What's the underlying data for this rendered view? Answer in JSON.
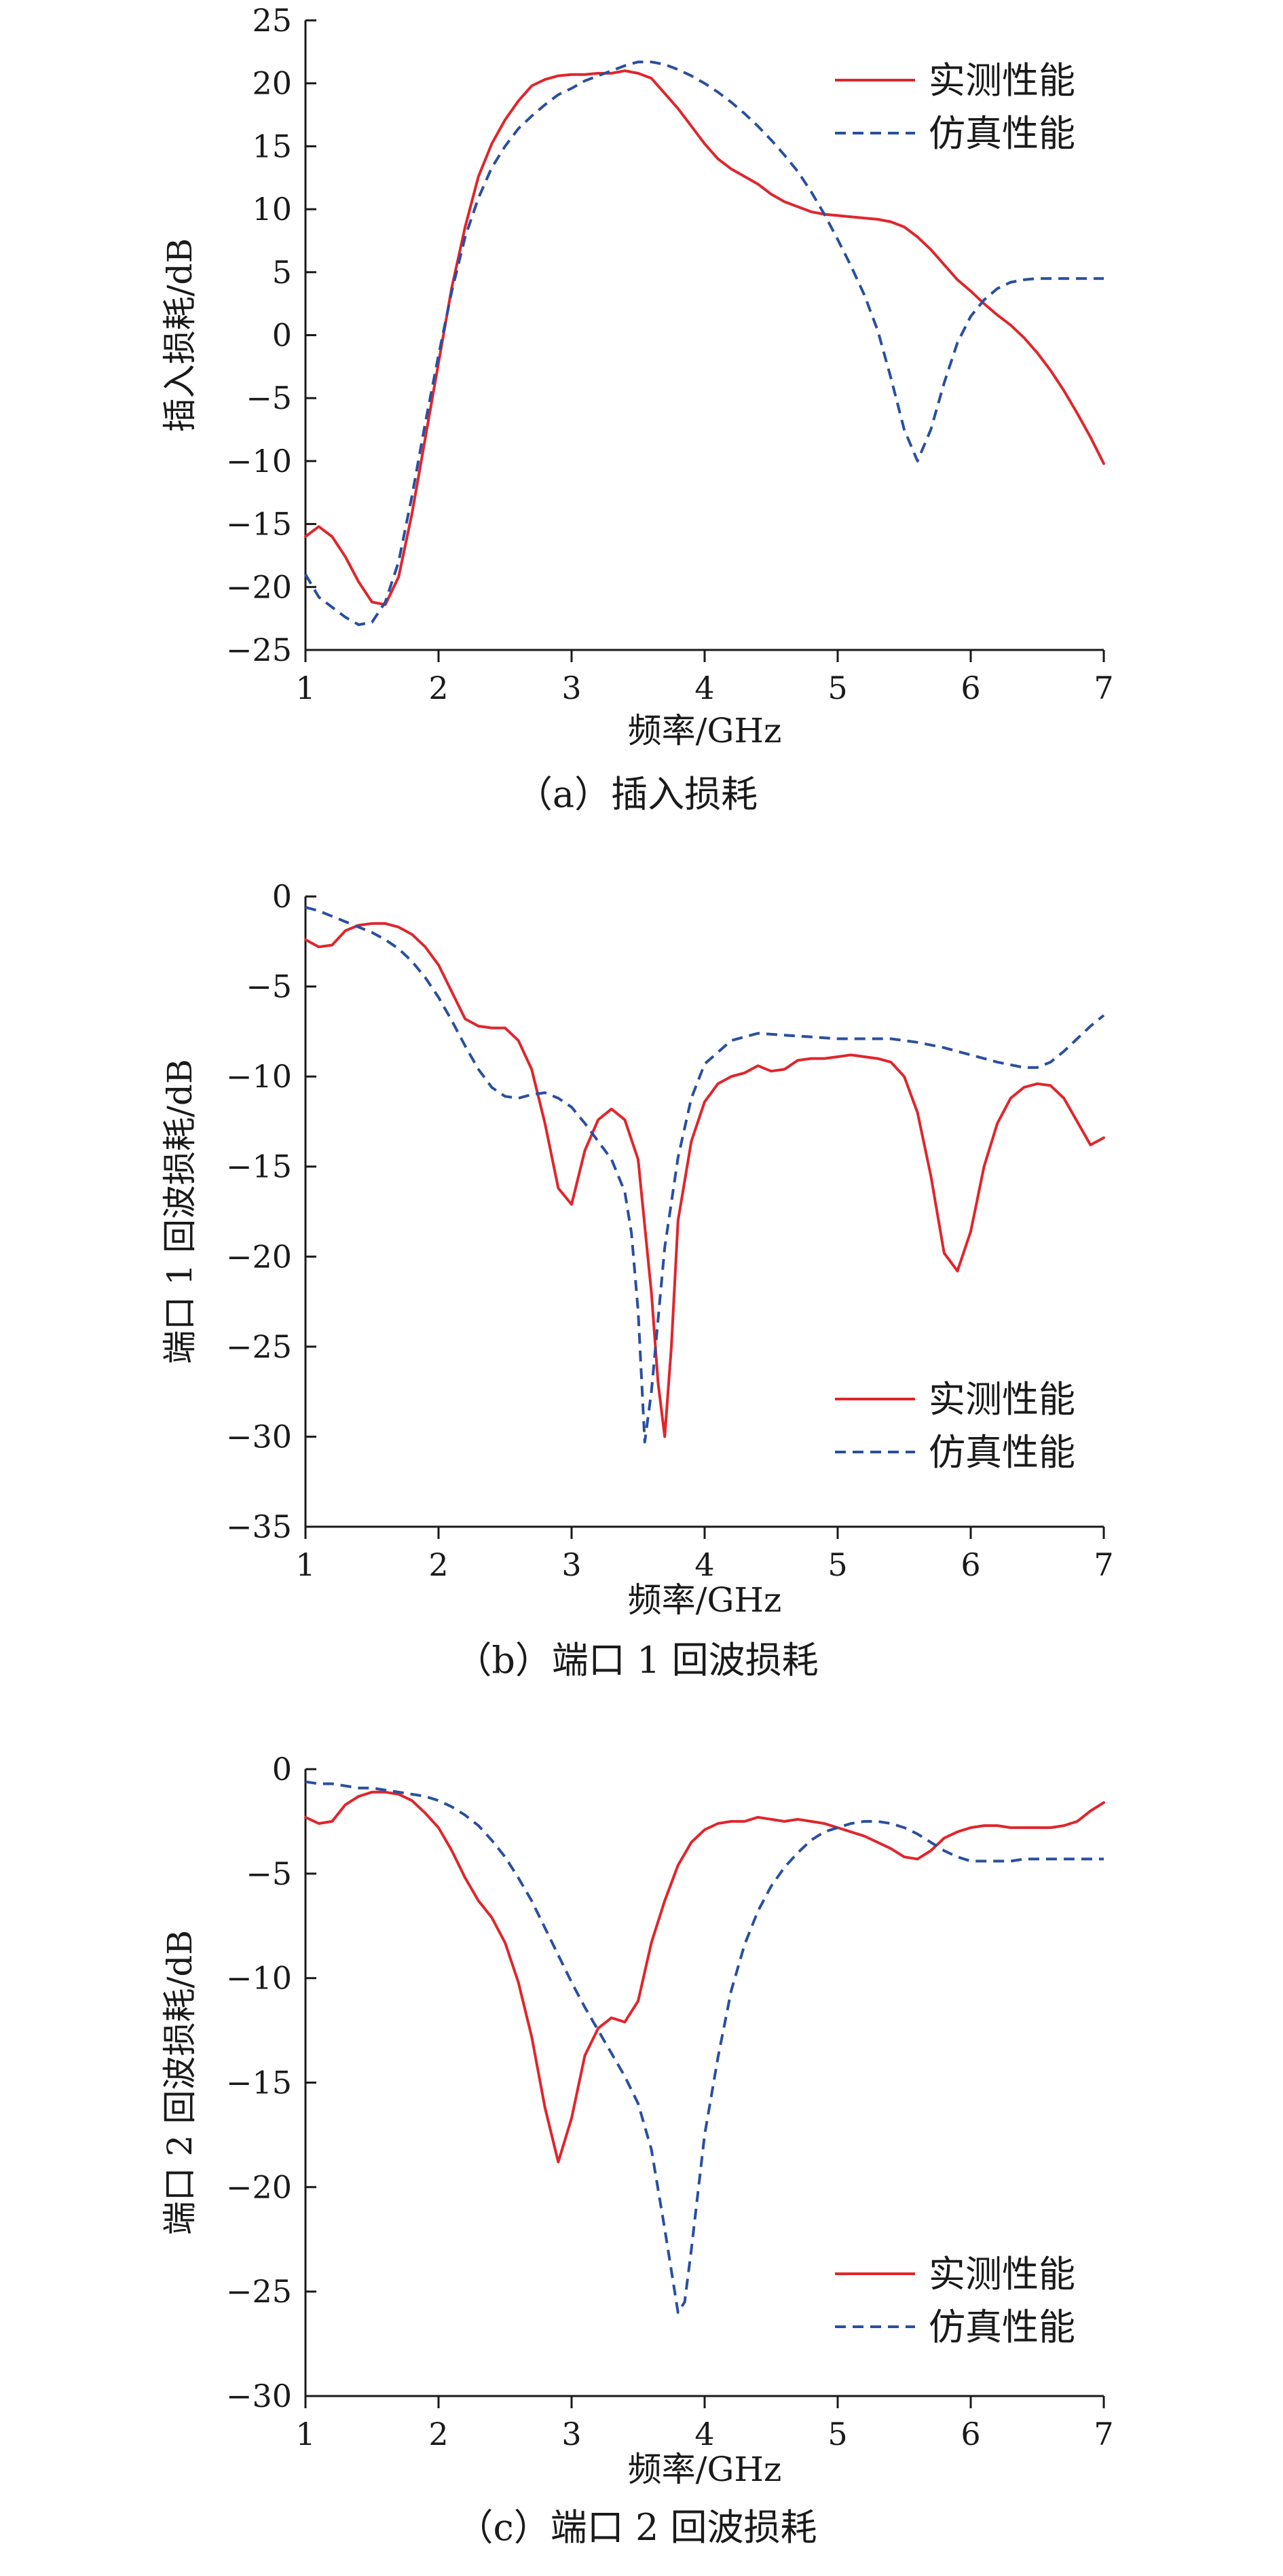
{
  "colors": {
    "measured": "#e0262c",
    "simulated": "#2a4f9e",
    "axis": "#1a1a1a"
  },
  "chart_data": [
    {
      "type": "line",
      "caption": "（a）插入损耗",
      "xlabel": "频率/GHz",
      "ylabel": "插入损耗/dB",
      "xlim": [
        1,
        7
      ],
      "ylim": [
        -25,
        25
      ],
      "xticks": [
        1,
        2,
        3,
        4,
        5,
        6,
        7
      ],
      "yticks": [
        25,
        20,
        15,
        10,
        5,
        0,
        -5,
        -10,
        -15,
        -20,
        -25
      ],
      "ytick_labels": [
        "25",
        "20",
        "15",
        "10",
        "5",
        "0",
        "−5",
        "−10",
        "−15",
        "−20",
        "−25"
      ],
      "legend_position": "top-right",
      "grid": false,
      "series": [
        {
          "name": "实测性能",
          "style": "solid",
          "color": "#e0262c",
          "x": [
            1,
            1.1,
            1.2,
            1.3,
            1.4,
            1.5,
            1.6,
            1.7,
            1.8,
            1.9,
            2,
            2.1,
            2.2,
            2.3,
            2.4,
            2.5,
            2.6,
            2.7,
            2.8,
            2.9,
            3,
            3.1,
            3.2,
            3.3,
            3.4,
            3.5,
            3.6,
            3.7,
            3.8,
            3.9,
            4,
            4.1,
            4.2,
            4.3,
            4.4,
            4.5,
            4.6,
            4.7,
            4.8,
            4.9,
            5,
            5.1,
            5.2,
            5.3,
            5.4,
            5.5,
            5.6,
            5.7,
            5.8,
            5.9,
            6,
            6.1,
            6.2,
            6.3,
            6.4,
            6.5,
            6.6,
            6.7,
            6.8,
            6.9,
            7
          ],
          "y": [
            -16,
            -15.2,
            -16,
            -17.6,
            -19.6,
            -21.2,
            -21.4,
            -19.2,
            -14.2,
            -8.2,
            -2.2,
            3.8,
            8.6,
            12.6,
            15.2,
            17.1,
            18.6,
            19.8,
            20.3,
            20.6,
            20.7,
            20.7,
            20.8,
            20.8,
            21,
            20.8,
            20.4,
            19.2,
            18,
            16.6,
            15.2,
            14,
            13.2,
            12.6,
            12,
            11.2,
            10.6,
            10.2,
            9.8,
            9.6,
            9.5,
            9.4,
            9.3,
            9.2,
            9,
            8.6,
            7.8,
            6.8,
            5.6,
            4.4,
            3.5,
            2.5,
            1.6,
            0.8,
            -0.2,
            -1.4,
            -2.8,
            -4.4,
            -6.2,
            -8.1,
            -10.2
          ]
        },
        {
          "name": "仿真性能",
          "style": "dashed",
          "color": "#2a4f9e",
          "x": [
            1,
            1.1,
            1.2,
            1.3,
            1.4,
            1.5,
            1.6,
            1.7,
            1.8,
            1.9,
            2,
            2.1,
            2.2,
            2.3,
            2.4,
            2.5,
            2.6,
            2.7,
            2.8,
            2.9,
            3,
            3.1,
            3.2,
            3.3,
            3.4,
            3.5,
            3.6,
            3.7,
            3.8,
            3.9,
            4,
            4.1,
            4.2,
            4.3,
            4.4,
            4.5,
            4.6,
            4.7,
            4.8,
            4.9,
            5,
            5.1,
            5.2,
            5.3,
            5.4,
            5.5,
            5.6,
            5.7,
            5.8,
            5.9,
            6,
            6.1,
            6.2,
            6.3,
            6.4,
            6.5,
            6.6,
            6.7,
            6.8,
            6.9,
            7
          ],
          "y": [
            -19,
            -20.8,
            -21.6,
            -22.4,
            -23,
            -22.8,
            -21.2,
            -18,
            -12.8,
            -7,
            -1.6,
            3.5,
            7.8,
            10.9,
            13.3,
            15,
            16.4,
            17.4,
            18.3,
            19.1,
            19.6,
            20.2,
            20.6,
            21,
            21.4,
            21.7,
            21.7,
            21.5,
            21.1,
            20.6,
            20,
            19.3,
            18.5,
            17.6,
            16.6,
            15.5,
            14.3,
            13,
            11.4,
            9.6,
            7.6,
            5.5,
            3.2,
            0.4,
            -3.4,
            -7.5,
            -10,
            -7.5,
            -3.8,
            -0.6,
            1.5,
            2.8,
            3.7,
            4.2,
            4.4,
            4.5,
            4.5,
            4.5,
            4.5,
            4.5,
            4.5
          ]
        }
      ]
    },
    {
      "type": "line",
      "caption": "（b）端口 1 回波损耗",
      "xlabel": "频率/GHz",
      "ylabel": "端口 1 回波损耗/dB",
      "xlim": [
        1,
        7
      ],
      "ylim": [
        -35,
        0
      ],
      "xticks": [
        1,
        2,
        3,
        4,
        5,
        6,
        7
      ],
      "yticks": [
        0,
        -5,
        -10,
        -15,
        -20,
        -25,
        -30,
        -35
      ],
      "ytick_labels": [
        "0",
        "−5",
        "−10",
        "−15",
        "−20",
        "−25",
        "−30",
        "−35"
      ],
      "legend_position": "bottom-right",
      "grid": false,
      "series": [
        {
          "name": "实测性能",
          "style": "solid",
          "color": "#e0262c",
          "x": [
            1,
            1.1,
            1.2,
            1.3,
            1.4,
            1.5,
            1.6,
            1.7,
            1.8,
            1.9,
            2,
            2.1,
            2.2,
            2.3,
            2.4,
            2.5,
            2.6,
            2.7,
            2.8,
            2.9,
            3,
            3.1,
            3.2,
            3.3,
            3.4,
            3.5,
            3.6,
            3.65,
            3.7,
            3.75,
            3.8,
            3.9,
            4,
            4.1,
            4.2,
            4.3,
            4.4,
            4.5,
            4.6,
            4.7,
            4.8,
            4.9,
            5,
            5.1,
            5.2,
            5.3,
            5.4,
            5.5,
            5.6,
            5.7,
            5.8,
            5.9,
            6,
            6.1,
            6.2,
            6.3,
            6.4,
            6.5,
            6.6,
            6.7,
            6.8,
            6.9,
            7
          ],
          "y": [
            -2.4,
            -2.8,
            -2.7,
            -1.9,
            -1.6,
            -1.5,
            -1.5,
            -1.7,
            -2.1,
            -2.8,
            -3.8,
            -5.3,
            -6.8,
            -7.2,
            -7.3,
            -7.3,
            -8,
            -9.6,
            -12.6,
            -16.2,
            -17.1,
            -14.1,
            -12.4,
            -11.8,
            -12.4,
            -14.6,
            -22,
            -27,
            -30,
            -25,
            -18,
            -13.6,
            -11.4,
            -10.4,
            -10,
            -9.8,
            -9.4,
            -9.7,
            -9.6,
            -9.1,
            -9,
            -9,
            -8.9,
            -8.8,
            -8.9,
            -9,
            -9.2,
            -10,
            -12,
            -15.5,
            -19.8,
            -20.8,
            -18.6,
            -15,
            -12.6,
            -11.2,
            -10.6,
            -10.4,
            -10.5,
            -11.2,
            -12.5,
            -13.8,
            -13.4
          ]
        },
        {
          "name": "仿真性能",
          "style": "dashed",
          "color": "#2a4f9e",
          "x": [
            1,
            1.1,
            1.2,
            1.3,
            1.4,
            1.5,
            1.6,
            1.7,
            1.8,
            1.9,
            2,
            2.1,
            2.2,
            2.3,
            2.4,
            2.5,
            2.6,
            2.7,
            2.8,
            2.9,
            3,
            3.1,
            3.2,
            3.3,
            3.4,
            3.45,
            3.5,
            3.55,
            3.6,
            3.7,
            3.8,
            3.9,
            4,
            4.2,
            4.4,
            4.6,
            4.8,
            5,
            5.2,
            5.4,
            5.6,
            5.8,
            6,
            6.2,
            6.4,
            6.5,
            6.6,
            6.7,
            6.8,
            6.9,
            7
          ],
          "y": [
            -0.6,
            -0.8,
            -1.1,
            -1.4,
            -1.7,
            -2,
            -2.4,
            -2.9,
            -3.6,
            -4.5,
            -5.6,
            -6.9,
            -8.3,
            -9.6,
            -10.6,
            -11.1,
            -11.2,
            -11,
            -10.9,
            -11.2,
            -11.7,
            -12.6,
            -13.6,
            -14.6,
            -16.4,
            -18.7,
            -23,
            -30.3,
            -27.5,
            -19.5,
            -14.5,
            -11.2,
            -9.3,
            -8,
            -7.6,
            -7.7,
            -7.8,
            -7.9,
            -7.9,
            -7.9,
            -8.1,
            -8.4,
            -8.8,
            -9.2,
            -9.5,
            -9.5,
            -9.2,
            -8.6,
            -7.9,
            -7.2,
            -6.6
          ]
        }
      ]
    },
    {
      "type": "line",
      "caption": "（c）端口 2 回波损耗",
      "xlabel": "频率/GHz",
      "ylabel": "端口 2 回波损耗/dB",
      "xlim": [
        1,
        7
      ],
      "ylim": [
        -30,
        0
      ],
      "xticks": [
        1,
        2,
        3,
        4,
        5,
        6,
        7
      ],
      "yticks": [
        0,
        -5,
        -10,
        -15,
        -20,
        -25,
        -30
      ],
      "ytick_labels": [
        "0",
        "−5",
        "−10",
        "−15",
        "−20",
        "−25",
        "−30"
      ],
      "legend_position": "bottom-right",
      "grid": false,
      "series": [
        {
          "name": "实测性能",
          "style": "solid",
          "color": "#e0262c",
          "x": [
            1,
            1.1,
            1.2,
            1.3,
            1.4,
            1.5,
            1.6,
            1.7,
            1.8,
            1.9,
            2,
            2.1,
            2.2,
            2.3,
            2.4,
            2.5,
            2.6,
            2.7,
            2.8,
            2.9,
            3,
            3.1,
            3.2,
            3.3,
            3.4,
            3.5,
            3.6,
            3.7,
            3.8,
            3.9,
            4,
            4.1,
            4.2,
            4.3,
            4.4,
            4.5,
            4.6,
            4.7,
            4.8,
            4.9,
            5,
            5.1,
            5.2,
            5.3,
            5.4,
            5.5,
            5.6,
            5.7,
            5.8,
            5.9,
            6,
            6.1,
            6.2,
            6.3,
            6.4,
            6.5,
            6.6,
            6.7,
            6.8,
            6.9,
            7
          ],
          "y": [
            -2.3,
            -2.6,
            -2.5,
            -1.7,
            -1.3,
            -1.1,
            -1.1,
            -1.2,
            -1.5,
            -2.1,
            -2.8,
            -3.9,
            -5.2,
            -6.3,
            -7.1,
            -8.3,
            -10.2,
            -12.8,
            -16.2,
            -18.8,
            -16.7,
            -13.7,
            -12.4,
            -11.9,
            -12.1,
            -11.1,
            -8.3,
            -6.3,
            -4.6,
            -3.5,
            -2.9,
            -2.6,
            -2.5,
            -2.5,
            -2.3,
            -2.4,
            -2.5,
            -2.4,
            -2.5,
            -2.6,
            -2.8,
            -3,
            -3.2,
            -3.5,
            -3.8,
            -4.2,
            -4.3,
            -3.9,
            -3.3,
            -3,
            -2.8,
            -2.7,
            -2.7,
            -2.8,
            -2.8,
            -2.8,
            -2.8,
            -2.7,
            -2.5,
            -2,
            -1.6
          ]
        },
        {
          "name": "仿真性能",
          "style": "dashed",
          "color": "#2a4f9e",
          "x": [
            1,
            1.1,
            1.2,
            1.3,
            1.4,
            1.5,
            1.6,
            1.7,
            1.8,
            1.9,
            2,
            2.1,
            2.2,
            2.3,
            2.4,
            2.5,
            2.6,
            2.7,
            2.8,
            2.9,
            3,
            3.1,
            3.2,
            3.3,
            3.4,
            3.5,
            3.6,
            3.7,
            3.8,
            3.85,
            3.9,
            4,
            4.1,
            4.2,
            4.3,
            4.4,
            4.5,
            4.6,
            4.7,
            4.8,
            4.9,
            5,
            5.1,
            5.2,
            5.3,
            5.4,
            5.5,
            5.6,
            5.7,
            5.8,
            5.9,
            6,
            6.1,
            6.2,
            6.3,
            6.4,
            6.5,
            6.6,
            6.7,
            6.8,
            6.9,
            7
          ],
          "y": [
            -0.6,
            -0.7,
            -0.7,
            -0.8,
            -0.9,
            -0.9,
            -1,
            -1.1,
            -1.2,
            -1.3,
            -1.5,
            -1.8,
            -2.2,
            -2.7,
            -3.4,
            -4.2,
            -5.2,
            -6.3,
            -7.6,
            -8.9,
            -10.2,
            -11.4,
            -12.5,
            -13.6,
            -14.7,
            -16,
            -18.2,
            -22,
            -26,
            -25.5,
            -23,
            -17.5,
            -13.8,
            -10.6,
            -8.4,
            -6.8,
            -5.6,
            -4.7,
            -4,
            -3.4,
            -3,
            -2.8,
            -2.6,
            -2.5,
            -2.5,
            -2.6,
            -2.8,
            -3.1,
            -3.5,
            -3.9,
            -4.2,
            -4.4,
            -4.4,
            -4.4,
            -4.4,
            -4.3,
            -4.3,
            -4.3,
            -4.3,
            -4.3,
            -4.3,
            -4.3
          ]
        }
      ]
    }
  ]
}
